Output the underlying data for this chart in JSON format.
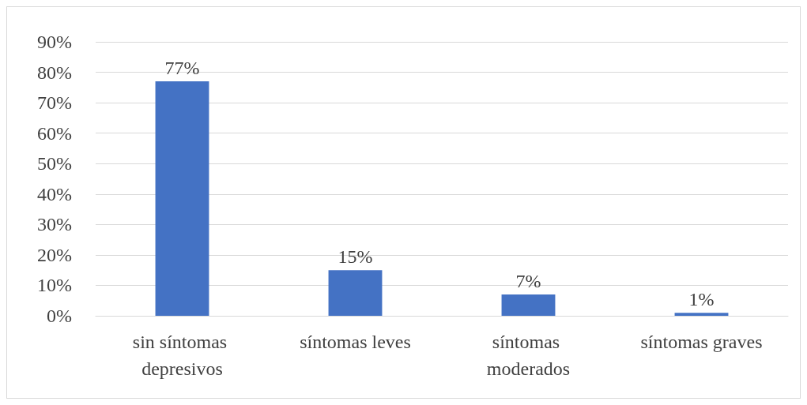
{
  "chart_data": {
    "type": "bar",
    "categories": [
      "sin síntomas depresivos",
      "síntomas leves",
      "síntomas moderados",
      "síntomas graves"
    ],
    "values": [
      77,
      15,
      7,
      1
    ],
    "color": "#4472c4",
    "value_labels": [
      "77%",
      "15%",
      "7%",
      "1%"
    ],
    "ylim": [
      0,
      90
    ],
    "yticks": [
      {
        "value": 0,
        "label": "0%"
      },
      {
        "value": 10,
        "label": "10%"
      },
      {
        "value": 20,
        "label": "20%"
      },
      {
        "value": 30,
        "label": "30%"
      },
      {
        "value": 40,
        "label": "40%"
      },
      {
        "value": 50,
        "label": "50%"
      },
      {
        "value": 60,
        "label": "60%"
      },
      {
        "value": 70,
        "label": "70%"
      },
      {
        "value": 80,
        "label": "80%"
      },
      {
        "value": 90,
        "label": "90%"
      }
    ],
    "grid": "y"
  }
}
